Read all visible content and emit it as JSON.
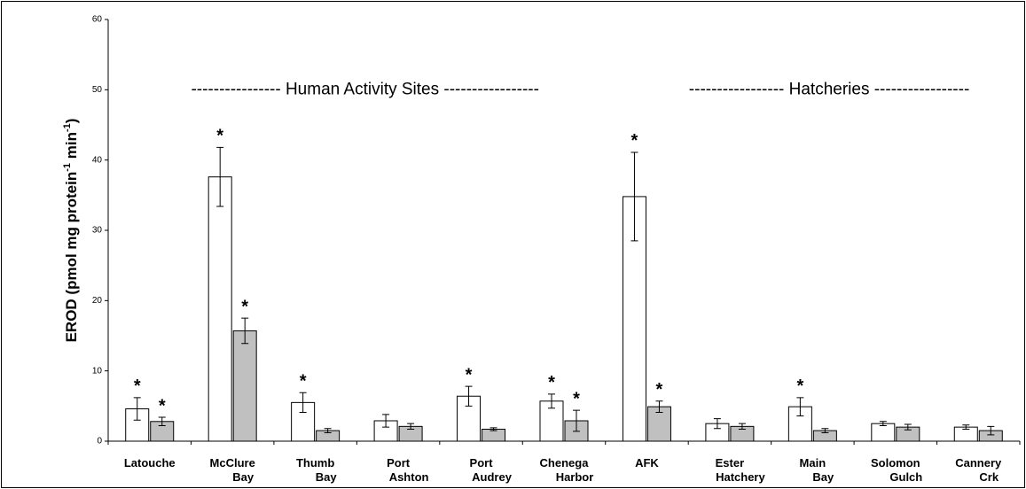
{
  "chart_data": {
    "type": "bar",
    "ylabel": [
      "EROD (pmol mg protein",
      "-1",
      " min",
      "-1",
      ")"
    ],
    "categories": [
      [
        "Latouche"
      ],
      [
        "McClure",
        "Bay"
      ],
      [
        "Thumb",
        "Bay"
      ],
      [
        "Port",
        "Ashton"
      ],
      [
        "Port",
        "Audrey"
      ],
      [
        "Chenega",
        "Harbor"
      ],
      [
        "AFK"
      ],
      [
        "Ester",
        "Hatchery"
      ],
      [
        "Main",
        "Bay"
      ],
      [
        "Solomon",
        "Gulch"
      ],
      [
        "Cannery",
        "Crk"
      ]
    ],
    "series": [
      {
        "color": "#ffffff",
        "values": [
          4.6,
          37.6,
          5.5,
          2.9,
          6.4,
          5.7,
          34.8,
          2.5,
          4.9,
          2.5,
          2.0
        ],
        "errors": [
          1.6,
          4.2,
          1.4,
          0.9,
          1.4,
          1.0,
          6.3,
          0.7,
          1.3,
          0.3,
          0.3
        ],
        "significance": [
          "*",
          "*",
          "*",
          null,
          "*",
          "*",
          "*",
          null,
          "*",
          null,
          null
        ]
      },
      {
        "color": "#c0c0c0",
        "values": [
          2.8,
          15.7,
          1.5,
          2.1,
          1.7,
          2.9,
          4.9,
          2.1,
          1.5,
          2.0,
          1.5
        ],
        "errors": [
          0.6,
          1.8,
          0.3,
          0.4,
          0.2,
          1.5,
          0.8,
          0.4,
          0.3,
          0.4,
          0.6
        ],
        "significance": [
          "*",
          "*",
          null,
          null,
          null,
          "*",
          "*",
          null,
          null,
          null,
          null
        ]
      }
    ],
    "annotations": [
      {
        "text": "---------------- Human Activity Sites -----------------",
        "x": 3.1,
        "y": 50
      },
      {
        "text": "----------------- Hatcheries -----------------",
        "x": 8.7,
        "y": 50
      }
    ],
    "ylim": [
      0,
      60
    ],
    "yticks": [
      0,
      10,
      20,
      30,
      40,
      50,
      60
    ]
  }
}
